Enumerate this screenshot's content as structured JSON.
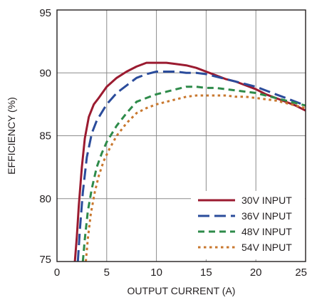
{
  "chart_data": {
    "type": "line",
    "title": "",
    "xlabel": "OUTPUT CURRENT (A)",
    "ylabel": "EFFICIENCY (%)",
    "xlim": [
      0,
      25
    ],
    "ylim": [
      75,
      95
    ],
    "xticks": [
      0,
      5,
      10,
      15,
      20,
      25
    ],
    "yticks": [
      75,
      80,
      85,
      90,
      95
    ],
    "grid": true,
    "legend_position": "bottom-right",
    "series": [
      {
        "name": "30V INPUT",
        "color": "#9b1b30",
        "dash": "solid",
        "x": [
          1.8,
          2.0,
          2.2,
          2.5,
          2.8,
          3.2,
          3.7,
          4.2,
          5.0,
          6.0,
          7.0,
          8.0,
          9.0,
          10.0,
          11.0,
          12.0,
          13.0,
          14.0,
          15.0,
          16.0,
          17.0,
          18.0,
          19.0,
          20.0,
          21.0,
          22.0,
          23.0,
          24.0,
          25.0
        ],
        "y": [
          75.0,
          77.0,
          79.5,
          82.5,
          84.8,
          86.5,
          87.5,
          88.0,
          88.9,
          89.6,
          90.1,
          90.5,
          90.8,
          90.8,
          90.8,
          90.7,
          90.6,
          90.4,
          90.1,
          89.8,
          89.5,
          89.3,
          89.0,
          88.7,
          88.3,
          88.0,
          87.7,
          87.4,
          87.0
        ]
      },
      {
        "name": "36V INPUT",
        "color": "#2b4c9b",
        "dash": "long",
        "x": [
          2.1,
          2.3,
          2.6,
          3.0,
          3.5,
          4.0,
          5.0,
          6.0,
          7.0,
          8.0,
          9.0,
          10.0,
          11.0,
          12.0,
          13.0,
          14.0,
          15.0,
          16.0,
          17.0,
          18.0,
          19.0,
          20.0,
          21.0,
          22.0,
          23.0,
          24.0,
          25.0
        ],
        "y": [
          75.0,
          77.5,
          80.5,
          83.3,
          85.2,
          86.2,
          87.5,
          88.4,
          89.0,
          89.6,
          89.9,
          90.1,
          90.1,
          90.1,
          90.0,
          90.0,
          89.9,
          89.7,
          89.5,
          89.3,
          89.1,
          88.9,
          88.6,
          88.3,
          88.0,
          87.7,
          87.4
        ]
      },
      {
        "name": "48V INPUT",
        "color": "#2e8b4a",
        "dash": "medium",
        "x": [
          2.6,
          2.8,
          3.1,
          3.5,
          4.0,
          4.5,
          5.0,
          6.0,
          7.0,
          8.0,
          9.0,
          10.0,
          11.0,
          12.0,
          13.0,
          14.0,
          15.0,
          16.0,
          17.0,
          18.0,
          19.0,
          20.0,
          21.0,
          22.0,
          23.0,
          24.0,
          25.0
        ],
        "y": [
          75.0,
          76.8,
          79.0,
          80.8,
          82.5,
          83.6,
          84.5,
          85.8,
          86.8,
          87.7,
          88.0,
          88.3,
          88.5,
          88.7,
          88.9,
          88.9,
          88.8,
          88.8,
          88.7,
          88.6,
          88.5,
          88.4,
          88.2,
          88.0,
          87.8,
          87.6,
          87.4
        ]
      },
      {
        "name": "54V INPUT",
        "color": "#c9782f",
        "dash": "dotted",
        "x": [
          2.9,
          3.1,
          3.4,
          3.8,
          4.2,
          4.7,
          5.3,
          6.0,
          7.0,
          8.0,
          9.0,
          10.0,
          11.0,
          12.0,
          13.0,
          14.0,
          15.0,
          16.0,
          17.0,
          18.0,
          19.0,
          20.0,
          21.0,
          22.0,
          23.0,
          24.0,
          25.0
        ],
        "y": [
          75.0,
          76.8,
          78.8,
          80.5,
          81.8,
          83.0,
          84.0,
          85.0,
          86.0,
          86.8,
          87.2,
          87.5,
          87.7,
          87.9,
          88.1,
          88.2,
          88.2,
          88.2,
          88.2,
          88.1,
          88.1,
          88.0,
          87.9,
          87.8,
          87.6,
          87.4,
          87.2
        ]
      }
    ]
  }
}
